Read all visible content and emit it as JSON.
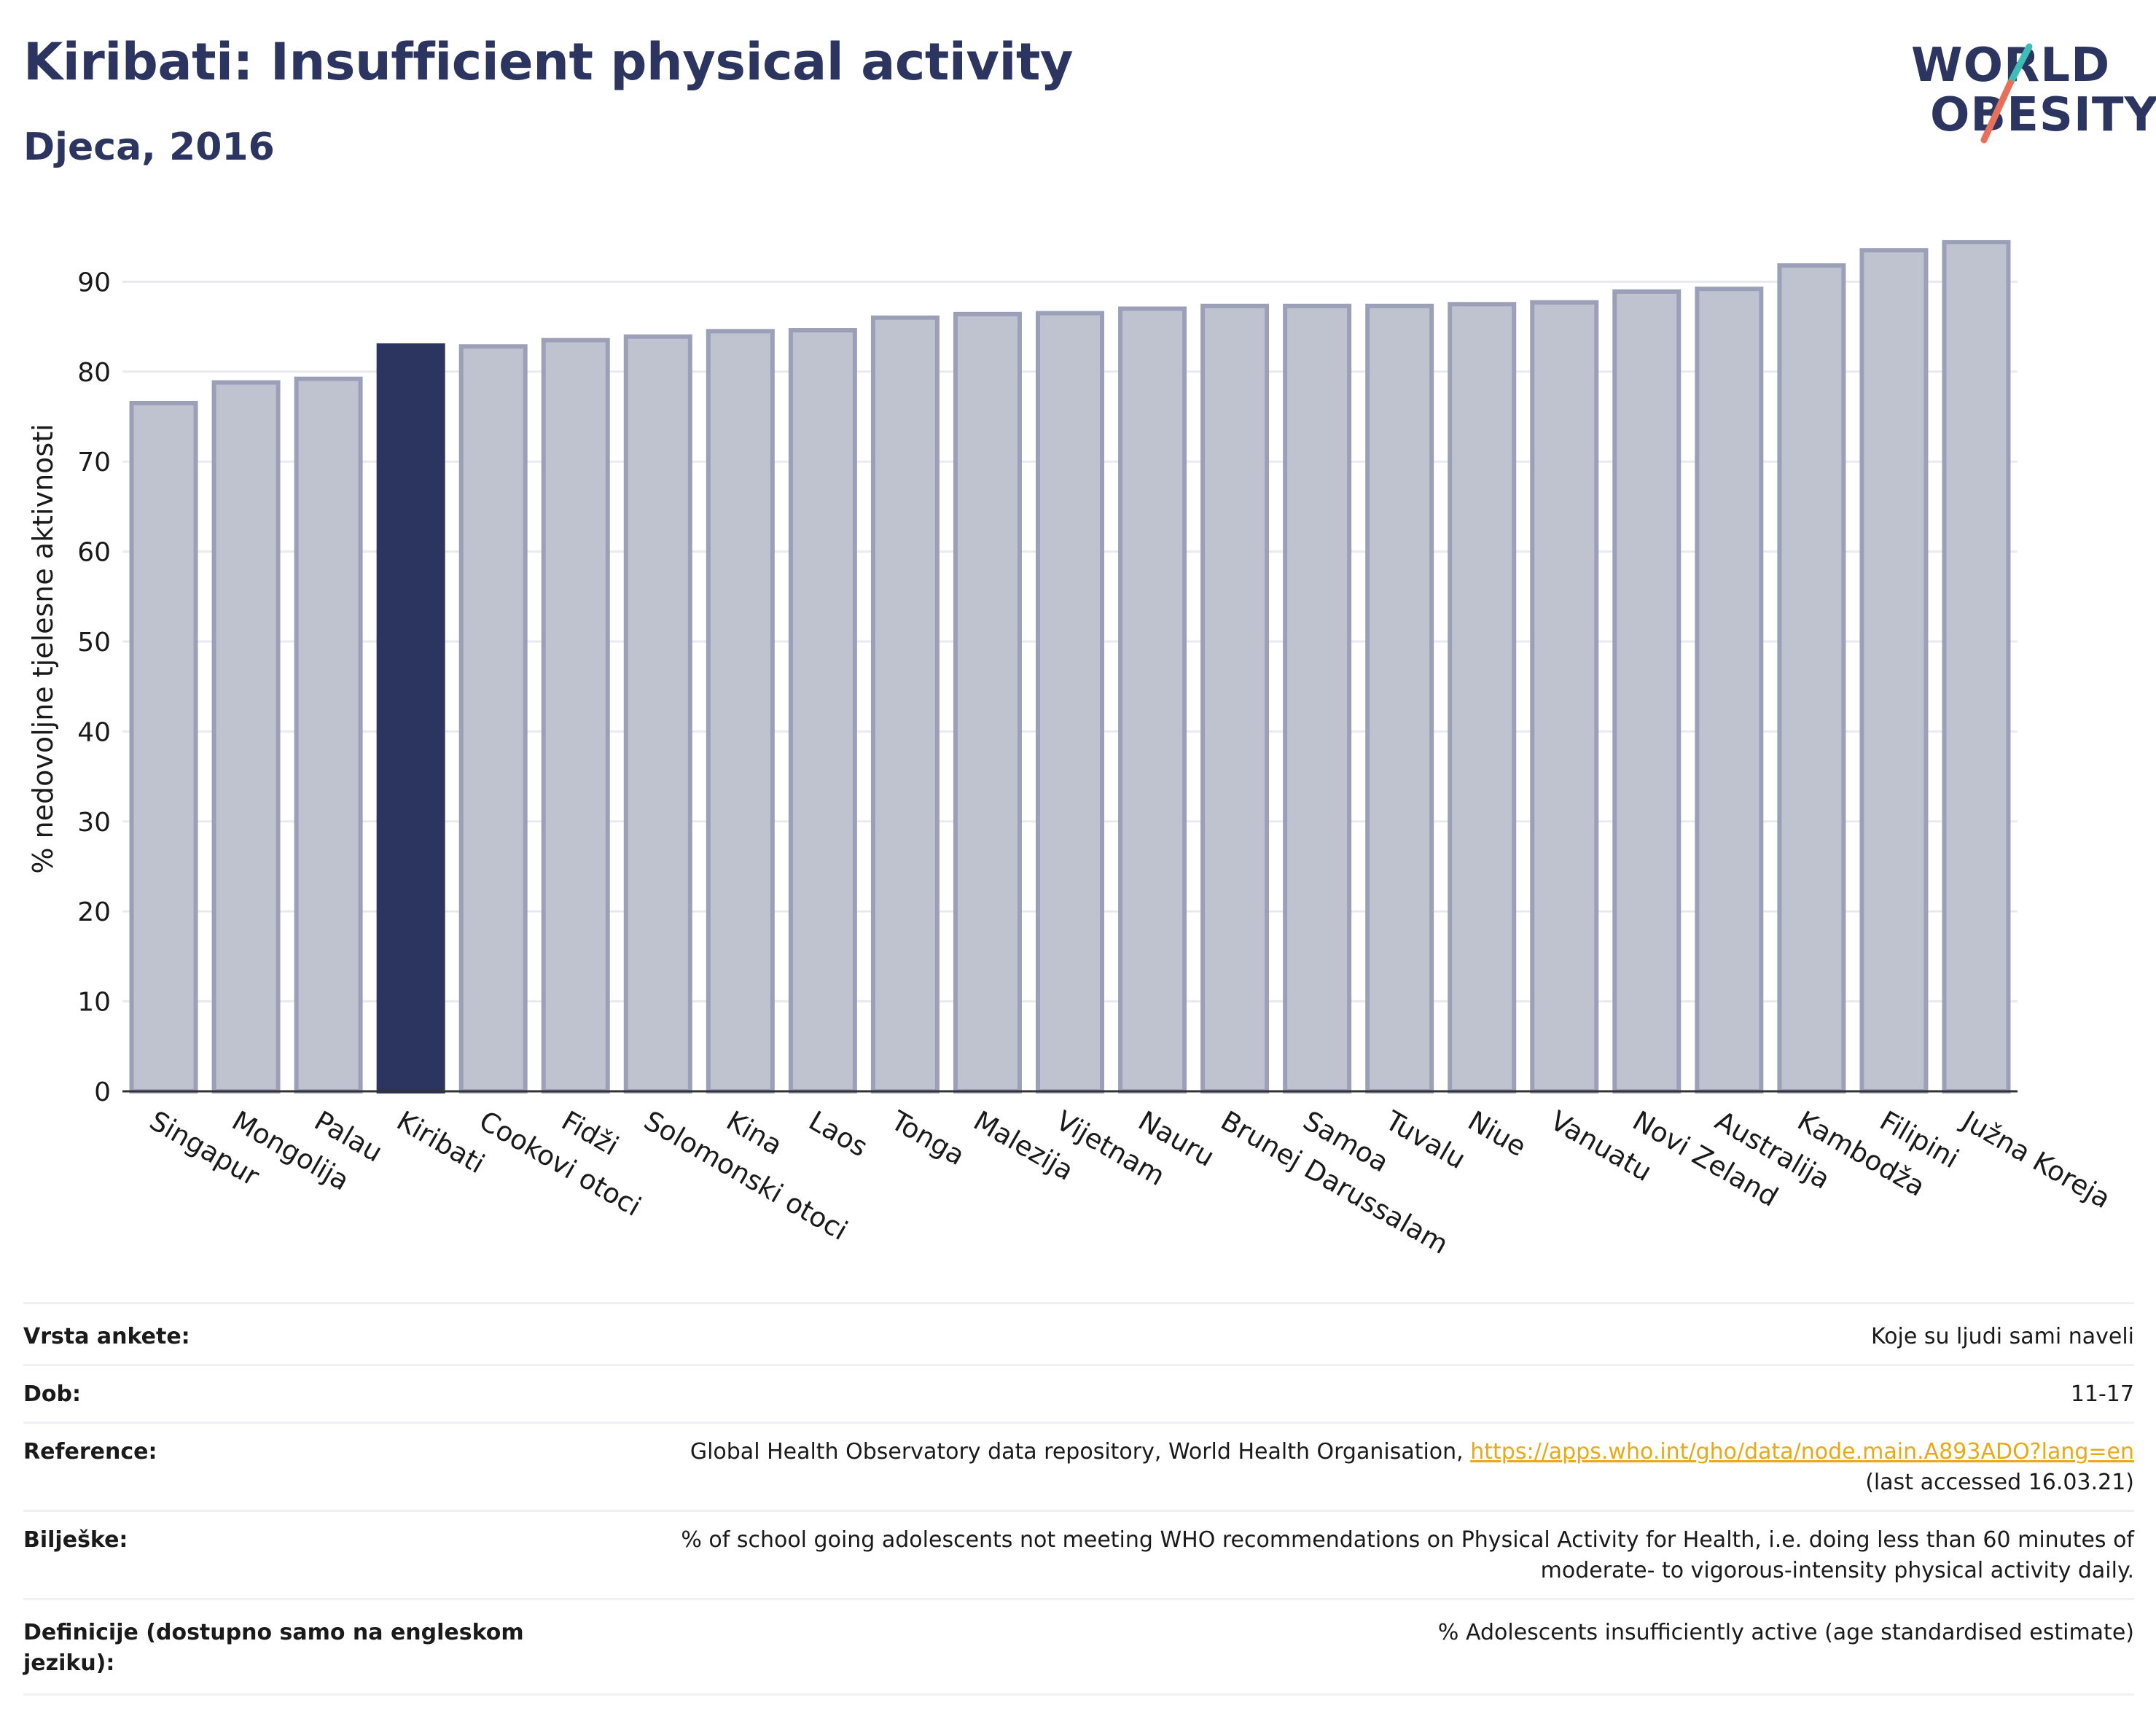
{
  "header": {
    "title": "Kiribati: Insufficient physical activity",
    "subtitle": "Djeca, 2016"
  },
  "logo": {
    "line1": "WORLD",
    "line2": "OBESITY",
    "accent_teal": "#3dbdb5",
    "accent_coral": "#e8705a"
  },
  "colors": {
    "highlight": "#2b3560",
    "bar_fill": "#bfc3cf",
    "bar_stroke": "#9ba0b8",
    "grid": "#e9eaf0"
  },
  "chart_data": {
    "type": "bar",
    "ylabel": "% nedovoljne tjelesne aktivnosti",
    "ylim": [
      0,
      96
    ],
    "yticks": [
      0,
      10,
      20,
      30,
      40,
      50,
      60,
      70,
      80,
      90
    ],
    "grid": true,
    "highlight": "Kiribati",
    "categories": [
      "Singapur",
      "Mongolija",
      "Palau",
      "Kiribati",
      "Cookovi otoci",
      "Fidži",
      "Solomonski otoci",
      "Kina",
      "Laos",
      "Tonga",
      "Malezija",
      "Vijetnam",
      "Nauru",
      "Brunej Darussalam",
      "Samoa",
      "Tuvalu",
      "Niue",
      "Vanuatu",
      "Novi Zeland",
      "Australija",
      "Kambodža",
      "Filipini",
      "Južna Koreja"
    ],
    "values": [
      76.5,
      78.8,
      79.2,
      82.9,
      82.8,
      83.5,
      83.9,
      84.5,
      84.6,
      86.0,
      86.4,
      86.5,
      87.0,
      87.3,
      87.3,
      87.3,
      87.5,
      87.7,
      88.9,
      89.2,
      91.8,
      93.5,
      94.4
    ]
  },
  "info": {
    "rows": [
      {
        "label": "Vrsta ankete:",
        "value": "Koje su ljudi sami naveli"
      },
      {
        "label": "Dob:",
        "value": "11-17"
      },
      {
        "label": "Reference:",
        "value": "Global Health Observatory data repository, World Health Organisation,",
        "link": "https://apps.who.int/gho/data/node.main.A893ADO?lang=en",
        "value2": "(last accessed 16.03.21)"
      },
      {
        "label": "Bilješke:",
        "value": "% of school going adolescents not meeting WHO recommendations on Physical Activity for Health, i.e. doing less than 60 minutes of",
        "value2": "moderate- to vigorous-intensity physical activity daily."
      },
      {
        "label": "Definicije (dostupno samo na engleskom",
        "label2": "jeziku):",
        "value": "% Adolescents insufficiently active (age standardised estimate)"
      }
    ]
  }
}
